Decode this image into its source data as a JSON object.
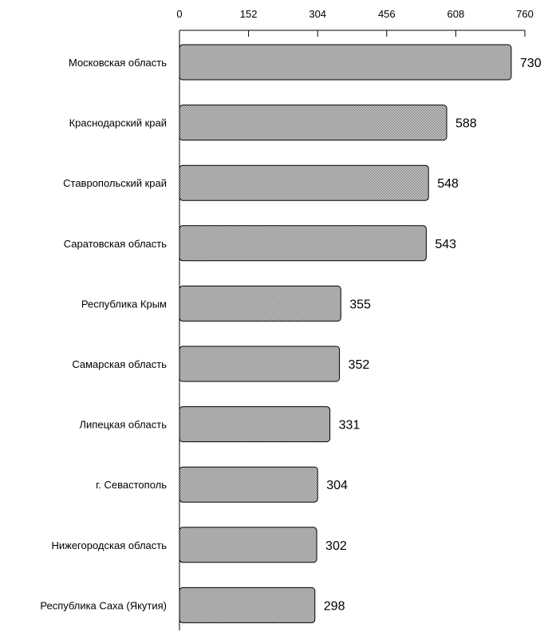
{
  "chart_data": {
    "type": "bar",
    "orientation": "horizontal",
    "categories": [
      "Московская область",
      "Краснодарский край",
      "Ставропольский край",
      "Саратовская область",
      "Республика Крым",
      "Самарская область",
      "Липецкая область",
      "г. Севастополь",
      "Нижегородская область",
      "Республика Саха (Якутия)"
    ],
    "values": [
      730,
      588,
      548,
      543,
      355,
      352,
      331,
      304,
      302,
      298
    ],
    "xlim": [
      0,
      760
    ],
    "x_ticks": [
      0,
      152,
      304,
      456,
      608,
      760
    ],
    "x_axis_position": "top",
    "grid": false,
    "legend": "none",
    "title": "",
    "xlabel": "",
    "ylabel": "",
    "colors": {
      "bar_fill_light": "#ffffff",
      "bar_fill_dark": "#555555",
      "bar_stroke": "#000000",
      "axis": "#000000"
    }
  }
}
